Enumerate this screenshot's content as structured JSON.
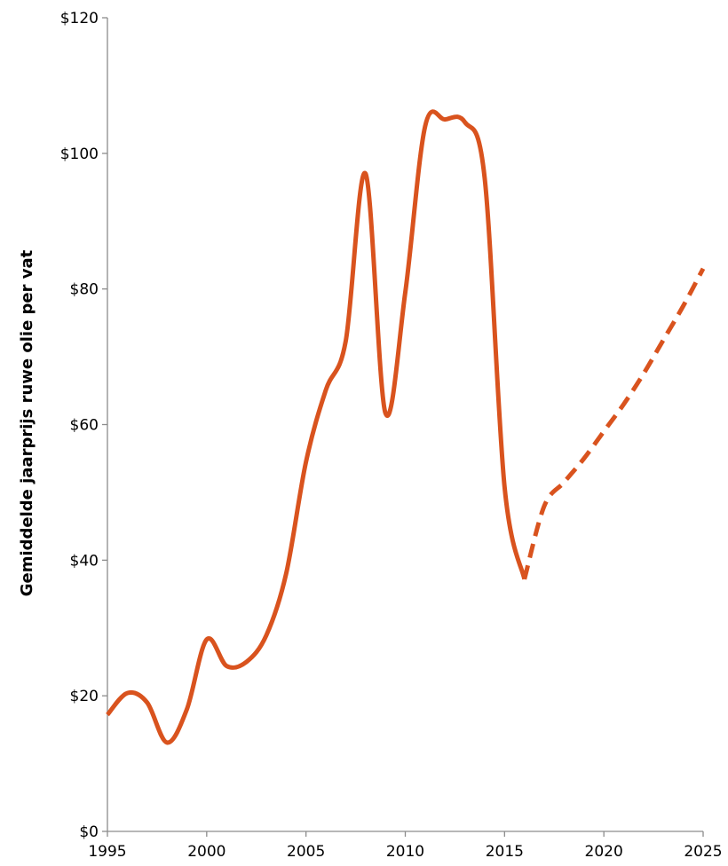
{
  "chart_data": {
    "type": "line",
    "title": "",
    "xlabel": "",
    "ylabel": "Gemiddelde jaarprijs ruwe olie per vat",
    "xlim": [
      1995,
      2025
    ],
    "ylim": [
      0,
      120
    ],
    "y_tick_prefix": "$",
    "x_ticks": [
      1995,
      2000,
      2005,
      2010,
      2015,
      2020,
      2025
    ],
    "y_ticks": [
      0,
      20,
      40,
      60,
      80,
      100,
      120
    ],
    "grid": false,
    "legend": "none",
    "series": [
      {
        "style": "solid",
        "color": "#d9531e",
        "points": [
          [
            1995,
            17.2
          ],
          [
            1996,
            20.4
          ],
          [
            1997,
            19.0
          ],
          [
            1998,
            13.1
          ],
          [
            1999,
            18.0
          ],
          [
            2000,
            28.3
          ],
          [
            2001,
            24.4
          ],
          [
            2002,
            25.0
          ],
          [
            2003,
            28.9
          ],
          [
            2004,
            38.0
          ],
          [
            2005,
            54.5
          ],
          [
            2006,
            65.1
          ],
          [
            2007,
            72.3
          ],
          [
            2008,
            97.0
          ],
          [
            2009,
            61.7
          ],
          [
            2010,
            79.5
          ],
          [
            2011,
            104.0
          ],
          [
            2012,
            105.0
          ],
          [
            2013,
            104.6
          ],
          [
            2014,
            96.3
          ],
          [
            2015,
            50.8
          ],
          [
            2016,
            37.2
          ]
        ]
      },
      {
        "style": "dashed",
        "color": "#d9531e",
        "points": [
          [
            2016,
            37.2
          ],
          [
            2017,
            48.0
          ],
          [
            2018,
            51.5
          ],
          [
            2019,
            55.0
          ],
          [
            2020,
            59.0
          ],
          [
            2021,
            63.0
          ],
          [
            2022,
            67.5
          ],
          [
            2023,
            72.5
          ],
          [
            2024,
            77.5
          ],
          [
            2025,
            83.0
          ]
        ]
      }
    ]
  }
}
